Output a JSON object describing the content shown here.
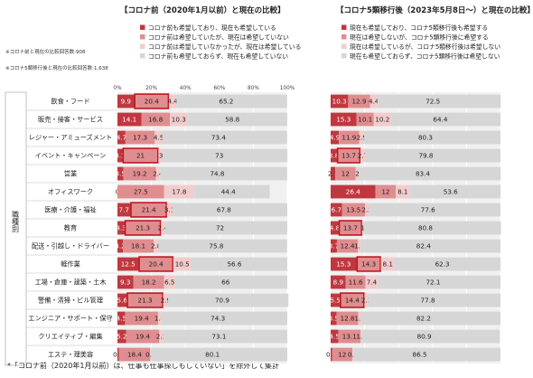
{
  "left_title": "【コロナ前（2020年1月以前）と現在の比較】",
  "right_title": "【コロナ5類移行後（2023年5月8日～）と現在の比較】",
  "left_notes": [
    "※コロナ前と現在の比較回答数:908",
    "※コロナ5類移行後と現在の比較回答数:1,638"
  ],
  "axis_group_label": "職種別",
  "footnote": "*「コロナ前（2020年1月以前）は、仕事も仕事探しもしていない」を除外して集計",
  "colors": {
    "s1": "#c0383f",
    "s2": "#df8d8f",
    "s3": "#f2cccd",
    "s4": "#d6d6d6",
    "highlight": "#c0151e"
  },
  "chart_data": [
    {
      "type": "bar",
      "orientation": "horizontal",
      "stacked": true,
      "title": "【コロナ前（2020年1月以前）と現在の比較】",
      "ticks": [
        "0%",
        "20%",
        "40%",
        "60%",
        "80%",
        "100%"
      ],
      "xlim": [
        0,
        100
      ],
      "categories": [
        "飲食・フード",
        "販売・接客・サービス",
        "レジャー・アミューズメント",
        "イベント・キャンペーン",
        "営業",
        "オフィスワーク",
        "医療・介護・福祉",
        "教育",
        "配送・引越し・ドライバー",
        "軽作業",
        "工場・倉庫・建築・土木",
        "警備・清掃・ビル管理",
        "エンジニア・サポート・保守",
        "クリエイティブ・編集",
        "エステ・理美容"
      ],
      "series": [
        {
          "name": "コロナ前も希望しており、現在も希望している",
          "values": [
            9.9,
            14.1,
            4.7,
            3.1,
            3.5,
            0.0,
            7.7,
            4.3,
            3.2,
            12.5,
            9.3,
            5.6,
            4.5,
            5.2,
            0.9
          ]
        },
        {
          "name": "コロナ前は希望していたが、現在は希望していない",
          "values": [
            20.4,
            16.8,
            17.3,
            21.0,
            19.2,
            27.5,
            21.4,
            21.3,
            18.1,
            20.4,
            18.2,
            21.3,
            19.4,
            19.4,
            18.4
          ]
        },
        {
          "name": "コロナ前は希望していなかったが、現在は希望している",
          "values": [
            4.4,
            10.3,
            4.5,
            3.0,
            2.4,
            17.8,
            3.1,
            2.4,
            2.8,
            10.5,
            6.5,
            2.9,
            1.8,
            2.3,
            0.6
          ]
        },
        {
          "name": "コロナ前も希望しておらず、現在も希望していない",
          "values": [
            65.2,
            58.8,
            73.4,
            73.0,
            74.8,
            44.4,
            67.8,
            72.0,
            75.8,
            56.6,
            66.0,
            70.9,
            74.3,
            73.1,
            80.1
          ]
        }
      ],
      "highlighted_values": [
        20.4,
        21.0,
        21.4,
        21.3,
        20.4,
        21.3
      ]
    },
    {
      "type": "bar",
      "orientation": "horizontal",
      "stacked": true,
      "title": "【コロナ5類移行後（2023年5月8日～）と現在の比較】",
      "categories": [
        "飲食・フード",
        "販売・接客・サービス",
        "レジャー・アミューズメント",
        "イベント・キャンペーン",
        "営業",
        "オフィスワーク",
        "医療・介護・福祉",
        "教育",
        "配送・引越し・ドライバー",
        "軽作業",
        "工場・倉庫・建築・土木",
        "警備・清掃・ビル管理",
        "エンジニア・サポート・保守",
        "クリエイティブ・編集",
        "エステ・理美容"
      ],
      "series": [
        {
          "name": "現在も希望しており、コロナ5類移行後も希望する",
          "values": [
            10.3,
            15.3,
            4.9,
            3.8,
            2.7,
            26.4,
            6.7,
            4.8,
            3.7,
            15.3,
            8.9,
            5.5,
            3.5,
            4.5,
            0.8
          ]
        },
        {
          "name": "現在は希望しないが、コロナ5類移行後に希望する",
          "values": [
            12.9,
            10.1,
            11.9,
            13.7,
            12.0,
            12.0,
            13.5,
            13.7,
            12.4,
            14.3,
            11.6,
            14.4,
            12.8,
            13.1,
            12.0
          ]
        },
        {
          "name": "現在は希望しているが、コロナ5類移行後は希望しない",
          "values": [
            4.4,
            10.2,
            2.9,
            2.7,
            2.0,
            8.1,
            2.2,
            1.0,
            1.5,
            8.1,
            7.4,
            2.3,
            1.5,
            1.1,
            0.7
          ]
        },
        {
          "name": "現在も希望しておらず、コロナ5類移行後は希望しない",
          "values": [
            72.5,
            64.4,
            80.3,
            79.8,
            83.4,
            53.6,
            77.6,
            80.8,
            82.4,
            62.3,
            72.1,
            77.8,
            82.2,
            80.9,
            86.5
          ]
        }
      ],
      "highlighted_values": [
        13.7,
        13.7,
        14.3,
        14.4
      ]
    }
  ]
}
